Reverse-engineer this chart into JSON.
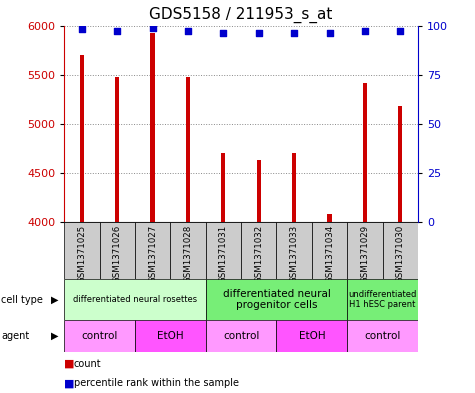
{
  "title": "GDS5158 / 211953_s_at",
  "samples": [
    "GSM1371025",
    "GSM1371026",
    "GSM1371027",
    "GSM1371028",
    "GSM1371031",
    "GSM1371032",
    "GSM1371033",
    "GSM1371034",
    "GSM1371029",
    "GSM1371030"
  ],
  "counts": [
    5700,
    5480,
    5920,
    5480,
    4700,
    4630,
    4700,
    4080,
    5420,
    5180
  ],
  "percentiles": [
    98,
    97,
    99,
    97,
    96,
    96,
    96,
    96,
    97,
    97
  ],
  "ylim_left": [
    4000,
    6000
  ],
  "ylim_right": [
    0,
    100
  ],
  "yticks_left": [
    4000,
    4500,
    5000,
    5500,
    6000
  ],
  "yticks_right": [
    0,
    25,
    50,
    75,
    100
  ],
  "bar_color": "#cc0000",
  "dot_color": "#0000cc",
  "bar_baseline": 4000,
  "cell_type_groups": [
    {
      "label": "differentiated neural rosettes",
      "span": [
        0,
        3
      ],
      "color": "#ccffcc",
      "fontsize": 6.0
    },
    {
      "label": "differentiated neural\nprogenitor cells",
      "span": [
        4,
        7
      ],
      "color": "#77ee77",
      "fontsize": 7.5
    },
    {
      "label": "undifferentiated\nH1 hESC parent",
      "span": [
        8,
        9
      ],
      "color": "#77ee77",
      "fontsize": 6.0
    }
  ],
  "agent_groups": [
    {
      "label": "control",
      "span": [
        0,
        1
      ],
      "color": "#ff99ff"
    },
    {
      "label": "EtOH",
      "span": [
        2,
        3
      ],
      "color": "#ff55ff"
    },
    {
      "label": "control",
      "span": [
        4,
        5
      ],
      "color": "#ff99ff"
    },
    {
      "label": "EtOH",
      "span": [
        6,
        7
      ],
      "color": "#ff55ff"
    },
    {
      "label": "control",
      "span": [
        8,
        9
      ],
      "color": "#ff99ff"
    }
  ],
  "sample_bg_color": "#cccccc",
  "grid_color": "#888888",
  "title_fontsize": 11,
  "tick_fontsize": 8,
  "left_axis_color": "#cc0000",
  "right_axis_color": "#0000cc",
  "bar_width": 0.12
}
